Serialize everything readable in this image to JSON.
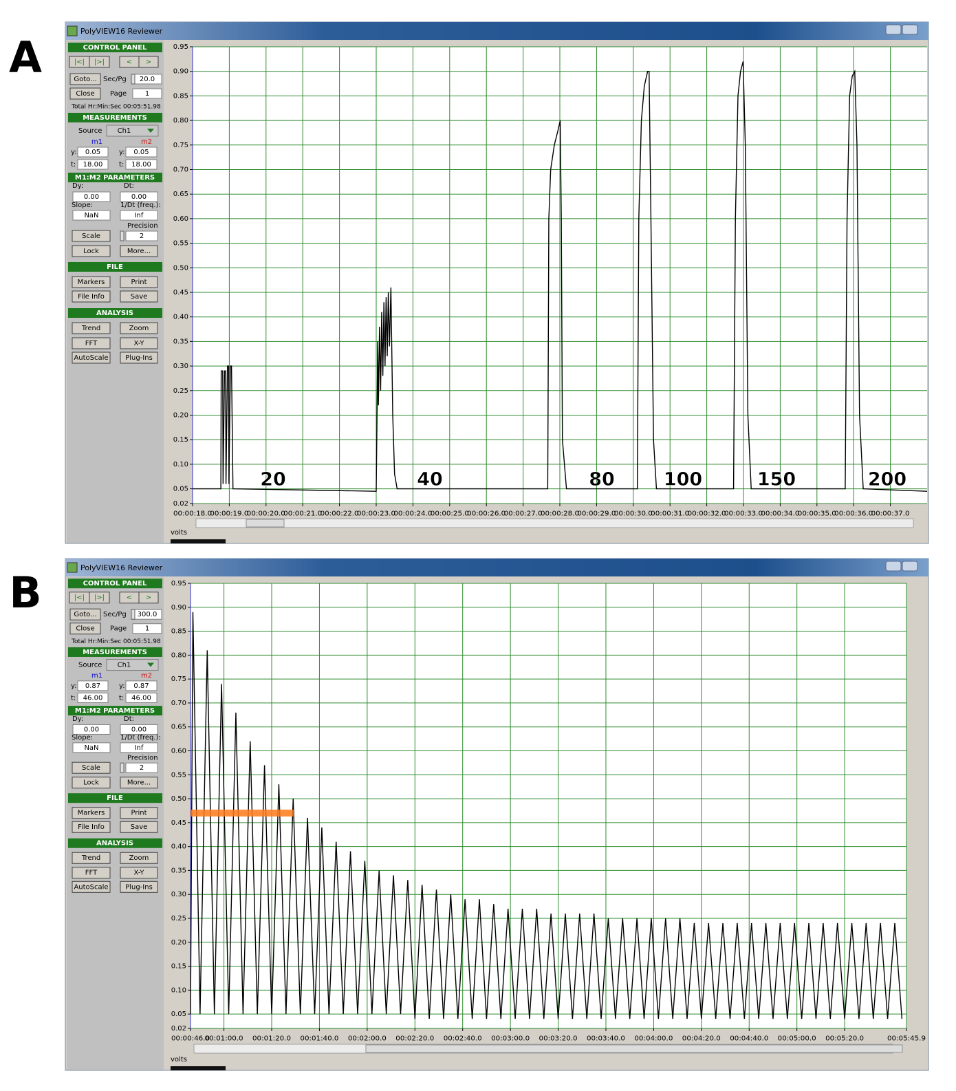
{
  "panels": [
    {
      "label": "A",
      "window_title": "PolyVIEW16 Reviewer",
      "controls": [
        "CONTROL PANEL",
        "|<|",
        "|>|",
        "<",
        ">",
        "Goto...",
        "Sec/Pg",
        "20.0",
        "Close",
        "Page",
        "1",
        "Total Hr:Min:Sec",
        "00:05:51.98",
        "MEASUREMENTS",
        "Source",
        "Ch1",
        "m1",
        "m2",
        "y:",
        "0.05",
        "y:",
        "0.05",
        "t:",
        "18.00",
        "t:",
        "18.00",
        "M1:M2 PARAMETERS",
        "Dy:",
        "Dt:",
        "0.00",
        "0.00",
        "Slope:",
        "1/Dt (freq.):",
        "NaN",
        "Inf",
        "Precision",
        "Scale",
        "2",
        "Lock",
        "More...",
        "FILE",
        "Markers",
        "Print",
        "File Info",
        "Save",
        "ANALYSIS",
        "Trend",
        "Zoom",
        "FFT",
        "X-Y",
        "AutoScale",
        "Plug-Ins"
      ],
      "chart_data": {
        "type": "line",
        "y_label": "volts",
        "grid": true,
        "x": [
          18,
          18.77,
          18.78,
          18.82,
          18.83,
          18.87,
          18.9,
          18.91,
          18.95,
          18.98,
          18.99,
          19.03,
          19.06,
          19.1,
          23.0,
          23.02,
          23.04,
          23.06,
          23.09,
          23.12,
          23.15,
          23.18,
          23.21,
          23.24,
          23.27,
          23.3,
          23.33,
          23.36,
          23.4,
          23.45,
          23.5,
          23.57,
          27.67,
          27.7,
          27.75,
          27.85,
          27.95,
          28.01,
          28.04,
          28.07,
          28.18,
          30.11,
          30.15,
          30.22,
          30.3,
          30.39,
          30.43,
          30.48,
          30.55,
          30.63,
          32.73,
          32.78,
          32.85,
          32.92,
          32.99,
          33.05,
          33.12,
          33.21,
          35.77,
          35.82,
          35.89,
          35.96,
          36.03,
          36.09,
          36.16,
          36.26,
          38
        ],
        "series": [
          {
            "color": "#000000",
            "values": [
              0.05,
              0.05,
              0.29,
              0.29,
              0.06,
              0.29,
              0.29,
              0.06,
              0.3,
              0.3,
              0.06,
              0.3,
              0.3,
              0.05,
              0.045,
              0.18,
              0.35,
              0.22,
              0.38,
              0.25,
              0.41,
              0.28,
              0.43,
              0.3,
              0.44,
              0.32,
              0.45,
              0.34,
              0.46,
              0.2,
              0.08,
              0.05,
              0.05,
              0.6,
              0.7,
              0.75,
              0.78,
              0.8,
              0.6,
              0.15,
              0.05,
              0.05,
              0.6,
              0.8,
              0.87,
              0.9,
              0.9,
              0.6,
              0.15,
              0.05,
              0.05,
              0.6,
              0.85,
              0.9,
              0.92,
              0.75,
              0.2,
              0.05,
              0.05,
              0.6,
              0.85,
              0.89,
              0.9,
              0.75,
              0.2,
              0.05,
              0.045
            ]
          }
        ],
        "xlim": [
          18,
          38
        ],
        "ylim": [
          0.02,
          0.95
        ],
        "xticks": [
          {
            "value": 18,
            "label": "00:00:18.0"
          },
          {
            "value": 19,
            "label": "00:00:19.0"
          },
          {
            "value": 20,
            "label": "00:00:20.0"
          },
          {
            "value": 21,
            "label": "00:00:21.0"
          },
          {
            "value": 22,
            "label": "00:00:22.0"
          },
          {
            "value": 23,
            "label": "00:00:23.0"
          },
          {
            "value": 24,
            "label": "00:00:24.0"
          },
          {
            "value": 25,
            "label": "00:00:25.0"
          },
          {
            "value": 26,
            "label": "00:00:26.0"
          },
          {
            "value": 27,
            "label": "00:00:27.0"
          },
          {
            "value": 28,
            "label": "00:00:28.0"
          },
          {
            "value": 29,
            "label": "00:00:29.0"
          },
          {
            "value": 30,
            "label": "00:00:30.0"
          },
          {
            "value": 31,
            "label": "00:00:31.0"
          },
          {
            "value": 32,
            "label": "00:00:32.0"
          },
          {
            "value": 33,
            "label": "00:00:33.0"
          },
          {
            "value": 34,
            "label": "00:00:34.0"
          },
          {
            "value": 35,
            "label": "00:00:35.0"
          },
          {
            "value": 36,
            "label": "00:00:36.0"
          },
          {
            "value": 37,
            "label": "00:00:37.0"
          }
        ],
        "yticks": [
          0.95,
          {
            "value": 0.9,
            "label": "0.90"
          },
          0.85,
          {
            "value": 0.8,
            "label": "0.80"
          },
          0.75,
          {
            "value": 0.7,
            "label": "0.70"
          },
          0.65,
          {
            "value": 0.6,
            "label": "0.60"
          },
          0.55,
          {
            "value": 0.5,
            "label": "0.50"
          },
          0.45,
          {
            "value": 0.4,
            "label": "0.40"
          },
          0.35,
          {
            "value": 0.3,
            "label": "0.30"
          },
          0.25,
          {
            "value": 0.2,
            "label": "0.20"
          },
          0.15,
          {
            "value": 0.1,
            "label": "0.10"
          },
          0.05,
          0.02
        ],
        "annotations": [
          "20",
          "40",
          "80",
          "100",
          "150",
          "200"
        ]
      }
    },
    {
      "label": "B",
      "window_title": "PolyVIEW16 Reviewer",
      "controls": [
        "CONTROL PANEL",
        "|<|",
        "|>|",
        "<",
        ">",
        "Goto...",
        "Sec/Pg",
        "300.0",
        "Close",
        "Page",
        "1",
        "Total Hr:Min:Sec",
        "00:05:51.98",
        "MEASUREMENTS",
        "Source",
        "Ch1",
        "m1",
        "m2",
        "y:",
        "0.87",
        "y:",
        "0.87",
        "t:",
        "46.00",
        "t:",
        "46.00",
        "M1:M2 PARAMETERS",
        "Dy:",
        "Dt:",
        "0.00",
        "0.00",
        "Slope:",
        "1/Dt (freq.):",
        "NaN",
        "Inf",
        "Precision",
        "Scale",
        "2",
        "Lock",
        "More...",
        "FILE",
        "Markers",
        "Print",
        "File Info",
        "Save",
        "ANALYSIS",
        "Trend",
        "Zoom",
        "FFT",
        "X-Y",
        "AutoScale",
        "Plug-Ins"
      ],
      "chart_data": {
        "type": "line",
        "y_label": "volts",
        "grid": true,
        "x": [
          46,
          47,
          50,
          53,
          56,
          59,
          62,
          65,
          68,
          71,
          74,
          77,
          80,
          83,
          86,
          89,
          92,
          95,
          98,
          101,
          104,
          107,
          110,
          113,
          116,
          119,
          122,
          125,
          128,
          131,
          134,
          137,
          140,
          143,
          146,
          149,
          152,
          155,
          158,
          161,
          164,
          167,
          170,
          173,
          176,
          179,
          182,
          185,
          188,
          191,
          194,
          197,
          200,
          203,
          206,
          209,
          212,
          215,
          218,
          221,
          224,
          227,
          230,
          233,
          236,
          239,
          242,
          245,
          248,
          251,
          254,
          257,
          260,
          263,
          266,
          269,
          272,
          275,
          278,
          281,
          284,
          287,
          290,
          293,
          296,
          299,
          302,
          305,
          308,
          311,
          314,
          317,
          320,
          323,
          326,
          329,
          332,
          335,
          338,
          341,
          344
        ],
        "series": [
          {
            "color": "#000000",
            "values": [
              0.05,
              0.89,
              0.05,
              0.81,
              0.05,
              0.74,
              0.05,
              0.68,
              0.05,
              0.62,
              0.05,
              0.57,
              0.05,
              0.53,
              0.05,
              0.5,
              0.05,
              0.46,
              0.05,
              0.44,
              0.05,
              0.41,
              0.05,
              0.39,
              0.05,
              0.37,
              0.05,
              0.35,
              0.05,
              0.34,
              0.05,
              0.33,
              0.04,
              0.32,
              0.04,
              0.31,
              0.04,
              0.3,
              0.04,
              0.29,
              0.04,
              0.29,
              0.04,
              0.28,
              0.04,
              0.27,
              0.04,
              0.27,
              0.04,
              0.27,
              0.04,
              0.26,
              0.04,
              0.26,
              0.04,
              0.26,
              0.04,
              0.26,
              0.04,
              0.25,
              0.04,
              0.25,
              0.04,
              0.25,
              0.04,
              0.25,
              0.04,
              0.25,
              0.04,
              0.25,
              0.04,
              0.24,
              0.04,
              0.24,
              0.04,
              0.24,
              0.04,
              0.24,
              0.04,
              0.24,
              0.04,
              0.24,
              0.04,
              0.24,
              0.04,
              0.24,
              0.04,
              0.24,
              0.04,
              0.24,
              0.04,
              0.24,
              0.04,
              0.24,
              0.04,
              0.24,
              0.04,
              0.24,
              0.04,
              0.24,
              0.04
            ]
          }
        ],
        "xlim": [
          46,
          345.9
        ],
        "ylim": [
          0.02,
          0.95
        ],
        "xticks": [
          {
            "value": 46,
            "label": "00:00:46.0"
          },
          {
            "value": 60,
            "label": "00:01:00.0"
          },
          {
            "value": 80,
            "label": "00:01:20.0"
          },
          {
            "value": 100,
            "label": "00:01:40.0"
          },
          {
            "value": 120,
            "label": "00:02:00.0"
          },
          {
            "value": 140,
            "label": "00:02:20.0"
          },
          {
            "value": 160,
            "label": "00:02:40.0"
          },
          {
            "value": 180,
            "label": "00:03:00.0"
          },
          {
            "value": 200,
            "label": "00:03:20.0"
          },
          {
            "value": 220,
            "label": "00:03:40.0"
          },
          {
            "value": 240,
            "label": "00:04:00.0"
          },
          {
            "value": 260,
            "label": "00:04:20.0"
          },
          {
            "value": 280,
            "label": "00:04:40.0"
          },
          {
            "value": 300,
            "label": "00:05:00.0"
          },
          {
            "value": 320,
            "label": "00:05:20.0"
          },
          {
            "value": 345.9,
            "label": "00:05:45.9"
          }
        ],
        "yticks": [
          0.95,
          {
            "value": 0.9,
            "label": "0.90"
          },
          0.85,
          {
            "value": 0.8,
            "label": "0.80"
          },
          0.75,
          {
            "value": 0.7,
            "label": "0.70"
          },
          0.65,
          {
            "value": 0.6,
            "label": "0.60"
          },
          0.55,
          {
            "value": 0.5,
            "label": "0.50"
          },
          0.45,
          {
            "value": 0.4,
            "label": "0.40"
          },
          0.35,
          {
            "value": 0.3,
            "label": "0.30"
          },
          0.25,
          {
            "value": 0.2,
            "label": "0.20"
          },
          0.15,
          {
            "value": 0.1,
            "label": "0.10"
          },
          0.05,
          0.02
        ]
      }
    }
  ]
}
